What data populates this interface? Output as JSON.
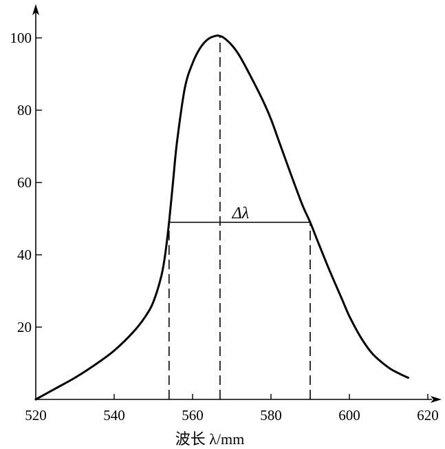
{
  "chart_data": {
    "type": "line",
    "title": "",
    "xlabel": "波长 λ/mm",
    "ylabel": "",
    "xlim": [
      520,
      630
    ],
    "ylim": [
      0,
      110
    ],
    "x_ticks": [
      520,
      540,
      560,
      580,
      600,
      620
    ],
    "y_ticks": [
      20,
      40,
      60,
      80,
      100
    ],
    "x_tick_labels": [
      "520",
      "540",
      "560",
      "580",
      "600",
      "620"
    ],
    "y_tick_labels": [
      "20",
      "40",
      "60",
      "80",
      "100"
    ],
    "grid": false,
    "legend": "none",
    "series": [
      {
        "x": [
          520,
          525,
          530,
          535,
          540,
          545,
          548,
          550,
          552,
          553,
          554,
          555,
          556,
          558,
          560,
          562,
          564,
          566,
          567,
          568,
          570,
          572,
          575,
          578,
          580,
          582,
          585,
          588,
          590,
          592,
          595,
          598,
          600,
          603,
          606,
          610,
          613,
          615
        ],
        "y": [
          0,
          3,
          6,
          9.5,
          13.5,
          18.8,
          23,
          27,
          34,
          40,
          49,
          60,
          71,
          86,
          93,
          97.3,
          99.7,
          100.6,
          100.5,
          100,
          98,
          95,
          89,
          82.5,
          77.5,
          71.5,
          62.5,
          53.8,
          49,
          43.5,
          35.5,
          28,
          23,
          17,
          12.5,
          8.8,
          7,
          6
        ]
      }
    ],
    "annotations": [
      {
        "type": "vline",
        "x": 567,
        "y_from": 0,
        "y_to": 100.6,
        "style": "dashed"
      },
      {
        "type": "vline",
        "x": 554,
        "y_from": 0,
        "y_to": 49,
        "style": "dashed"
      },
      {
        "type": "vline",
        "x": 590,
        "y_from": 0,
        "y_to": 49,
        "style": "dashed"
      },
      {
        "type": "hline",
        "x_from": 554,
        "x_to": 590,
        "y": 49,
        "style": "solid"
      },
      {
        "type": "text",
        "text": "Δλ",
        "x": 567,
        "y": 49
      }
    ]
  }
}
